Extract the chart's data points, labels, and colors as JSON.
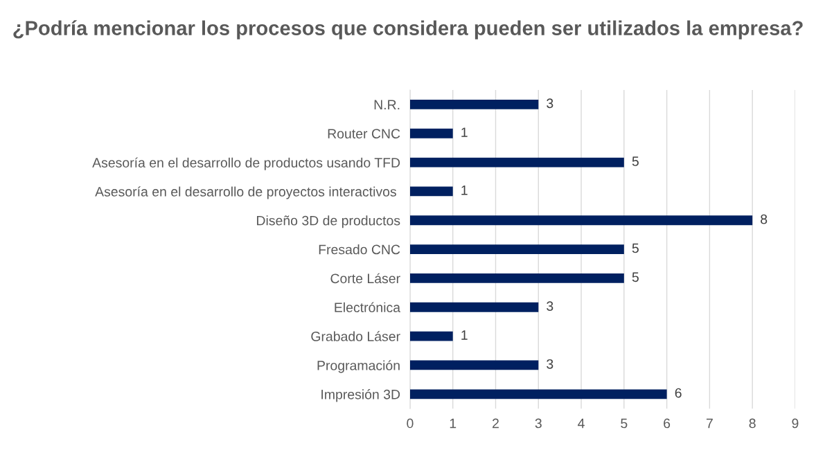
{
  "chart_data": {
    "type": "bar",
    "orientation": "horizontal",
    "title": "¿Podría mencionar los procesos que considera pueden ser utilizados la empresa?",
    "categories": [
      "N.R.",
      "Router CNC",
      "Asesoría en el desarrollo de productos usando TFD",
      "Asesoría en el desarrollo de proyectos interactivos ",
      "Diseño 3D de productos",
      "Fresado CNC",
      "Corte Láser",
      "Electrónica",
      "Grabado Láser",
      "Programación",
      "Impresión 3D"
    ],
    "values": [
      3,
      1,
      5,
      1,
      8,
      5,
      5,
      3,
      1,
      3,
      6
    ],
    "color": "#002060",
    "xlim": [
      0,
      9
    ],
    "xticks": [
      0,
      1,
      2,
      3,
      4,
      5,
      6,
      7,
      8,
      9
    ],
    "grid": "x",
    "data_labels": true
  }
}
